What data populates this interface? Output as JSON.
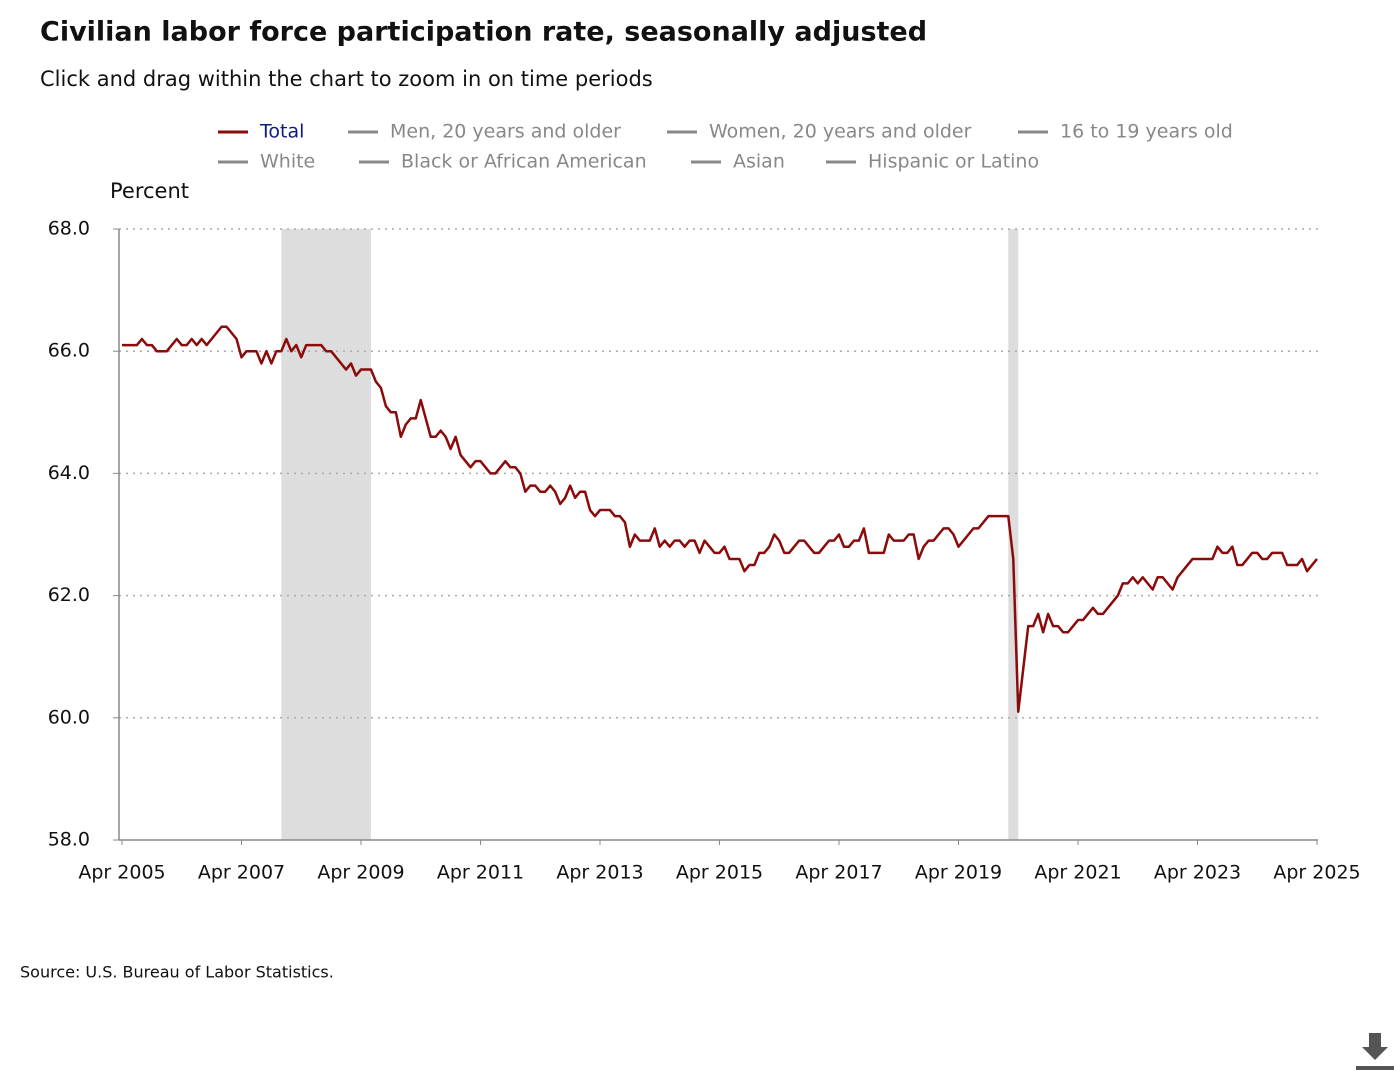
{
  "chart_data": {
    "type": "line",
    "title": "Civilian labor force participation rate, seasonally adjusted",
    "subtitle": "Click and drag within the chart to zoom in on time periods",
    "y_label": "Percent",
    "source": "Source: U.S. Bureau of Labor Statistics.",
    "ylim": [
      58,
      68
    ],
    "yticks": [
      {
        "value": 58,
        "label": "58.0"
      },
      {
        "value": 60,
        "label": "60.0"
      },
      {
        "value": 62,
        "label": "62.0"
      },
      {
        "value": 64,
        "label": "64.0"
      },
      {
        "value": 66,
        "label": "66.0"
      },
      {
        "value": 68,
        "label": "68.0"
      }
    ],
    "xlim": [
      "2005-04",
      "2025-04"
    ],
    "xticks": [
      {
        "value": "2005-04",
        "label": "Apr 2005"
      },
      {
        "value": "2007-04",
        "label": "Apr 2007"
      },
      {
        "value": "2009-04",
        "label": "Apr 2009"
      },
      {
        "value": "2011-04",
        "label": "Apr 2011"
      },
      {
        "value": "2013-04",
        "label": "Apr 2013"
      },
      {
        "value": "2015-04",
        "label": "Apr 2015"
      },
      {
        "value": "2017-04",
        "label": "Apr 2017"
      },
      {
        "value": "2019-04",
        "label": "Apr 2019"
      },
      {
        "value": "2021-04",
        "label": "Apr 2021"
      },
      {
        "value": "2023-04",
        "label": "Apr 2023"
      },
      {
        "value": "2025-04",
        "label": "Apr 2025"
      }
    ],
    "grid": true,
    "recessions": [
      [
        "2007-12",
        "2009-06"
      ],
      [
        "2020-02",
        "2020-04"
      ]
    ],
    "recession_color": "#dddddd",
    "inactive_color": "#888888",
    "legend_items": [
      "Men, 20 years and older",
      "Women, 20 years and older",
      "16 to 19 years old",
      "White",
      "Black or African American",
      "Asian",
      "Hispanic or Latino"
    ],
    "x": [
      "2005-04",
      "2005-05",
      "2005-06",
      "2005-07",
      "2005-08",
      "2005-09",
      "2005-10",
      "2005-11",
      "2005-12",
      "2006-01",
      "2006-02",
      "2006-03",
      "2006-04",
      "2006-05",
      "2006-06",
      "2006-07",
      "2006-08",
      "2006-09",
      "2006-10",
      "2006-11",
      "2006-12",
      "2007-01",
      "2007-02",
      "2007-03",
      "2007-04",
      "2007-05",
      "2007-06",
      "2007-07",
      "2007-08",
      "2007-09",
      "2007-10",
      "2007-11",
      "2007-12",
      "2008-01",
      "2008-02",
      "2008-03",
      "2008-04",
      "2008-05",
      "2008-06",
      "2008-07",
      "2008-08",
      "2008-09",
      "2008-10",
      "2008-11",
      "2008-12",
      "2009-01",
      "2009-02",
      "2009-03",
      "2009-04",
      "2009-05",
      "2009-06",
      "2009-07",
      "2009-08",
      "2009-09",
      "2009-10",
      "2009-11",
      "2009-12",
      "2010-01",
      "2010-02",
      "2010-03",
      "2010-04",
      "2010-05",
      "2010-06",
      "2010-07",
      "2010-08",
      "2010-09",
      "2010-10",
      "2010-11",
      "2010-12",
      "2011-01",
      "2011-02",
      "2011-03",
      "2011-04",
      "2011-05",
      "2011-06",
      "2011-07",
      "2011-08",
      "2011-09",
      "2011-10",
      "2011-11",
      "2011-12",
      "2012-01",
      "2012-02",
      "2012-03",
      "2012-04",
      "2012-05",
      "2012-06",
      "2012-07",
      "2012-08",
      "2012-09",
      "2012-10",
      "2012-11",
      "2012-12",
      "2013-01",
      "2013-02",
      "2013-03",
      "2013-04",
      "2013-05",
      "2013-06",
      "2013-07",
      "2013-08",
      "2013-09",
      "2013-10",
      "2013-11",
      "2013-12",
      "2014-01",
      "2014-02",
      "2014-03",
      "2014-04",
      "2014-05",
      "2014-06",
      "2014-07",
      "2014-08",
      "2014-09",
      "2014-10",
      "2014-11",
      "2014-12",
      "2015-01",
      "2015-02",
      "2015-03",
      "2015-04",
      "2015-05",
      "2015-06",
      "2015-07",
      "2015-08",
      "2015-09",
      "2015-10",
      "2015-11",
      "2015-12",
      "2016-01",
      "2016-02",
      "2016-03",
      "2016-04",
      "2016-05",
      "2016-06",
      "2016-07",
      "2016-08",
      "2016-09",
      "2016-10",
      "2016-11",
      "2016-12",
      "2017-01",
      "2017-02",
      "2017-03",
      "2017-04",
      "2017-05",
      "2017-06",
      "2017-07",
      "2017-08",
      "2017-09",
      "2017-10",
      "2017-11",
      "2017-12",
      "2018-01",
      "2018-02",
      "2018-03",
      "2018-04",
      "2018-05",
      "2018-06",
      "2018-07",
      "2018-08",
      "2018-09",
      "2018-10",
      "2018-11",
      "2018-12",
      "2019-01",
      "2019-02",
      "2019-03",
      "2019-04",
      "2019-05",
      "2019-06",
      "2019-07",
      "2019-08",
      "2019-09",
      "2019-10",
      "2019-11",
      "2019-12",
      "2020-01",
      "2020-02",
      "2020-03",
      "2020-04",
      "2020-05",
      "2020-06",
      "2020-07",
      "2020-08",
      "2020-09",
      "2020-10",
      "2020-11",
      "2020-12",
      "2021-01",
      "2021-02",
      "2021-03",
      "2021-04",
      "2021-05",
      "2021-06",
      "2021-07",
      "2021-08",
      "2021-09",
      "2021-10",
      "2021-11",
      "2021-12",
      "2022-01",
      "2022-02",
      "2022-03",
      "2022-04",
      "2022-05",
      "2022-06",
      "2022-07",
      "2022-08",
      "2022-09",
      "2022-10",
      "2022-11",
      "2022-12",
      "2023-01",
      "2023-02",
      "2023-03",
      "2023-04",
      "2023-05",
      "2023-06",
      "2023-07",
      "2023-08",
      "2023-09",
      "2023-10",
      "2023-11",
      "2023-12",
      "2024-01",
      "2024-02",
      "2024-03",
      "2024-04",
      "2024-05",
      "2024-06",
      "2024-07",
      "2024-08",
      "2024-09",
      "2024-10",
      "2024-11",
      "2024-12",
      "2025-01",
      "2025-02",
      "2025-03",
      "2025-04"
    ],
    "series": [
      {
        "name": "Total",
        "color": "#8b0a0a",
        "label_color": "#0b1f7a",
        "values": [
          66.1,
          66.1,
          66.1,
          66.1,
          66.2,
          66.1,
          66.1,
          66.0,
          66.0,
          66.0,
          66.1,
          66.2,
          66.1,
          66.1,
          66.2,
          66.1,
          66.2,
          66.1,
          66.2,
          66.3,
          66.4,
          66.4,
          66.3,
          66.2,
          65.9,
          66.0,
          66.0,
          66.0,
          65.8,
          66.0,
          65.8,
          66.0,
          66.0,
          66.2,
          66.0,
          66.1,
          65.9,
          66.1,
          66.1,
          66.1,
          66.1,
          66.0,
          66.0,
          65.9,
          65.8,
          65.7,
          65.8,
          65.6,
          65.7,
          65.7,
          65.7,
          65.5,
          65.4,
          65.1,
          65.0,
          65.0,
          64.6,
          64.8,
          64.9,
          64.9,
          65.2,
          64.9,
          64.6,
          64.6,
          64.7,
          64.6,
          64.4,
          64.6,
          64.3,
          64.2,
          64.1,
          64.2,
          64.2,
          64.1,
          64.0,
          64.0,
          64.1,
          64.2,
          64.1,
          64.1,
          64.0,
          63.7,
          63.8,
          63.8,
          63.7,
          63.7,
          63.8,
          63.7,
          63.5,
          63.6,
          63.8,
          63.6,
          63.7,
          63.7,
          63.4,
          63.3,
          63.4,
          63.4,
          63.4,
          63.3,
          63.3,
          63.2,
          62.8,
          63.0,
          62.9,
          62.9,
          62.9,
          63.1,
          62.8,
          62.9,
          62.8,
          62.9,
          62.9,
          62.8,
          62.9,
          62.9,
          62.7,
          62.9,
          62.8,
          62.7,
          62.7,
          62.8,
          62.6,
          62.6,
          62.6,
          62.4,
          62.5,
          62.5,
          62.7,
          62.7,
          62.8,
          63.0,
          62.9,
          62.7,
          62.7,
          62.8,
          62.9,
          62.9,
          62.8,
          62.7,
          62.7,
          62.8,
          62.9,
          62.9,
          63.0,
          62.8,
          62.8,
          62.9,
          62.9,
          63.1,
          62.7,
          62.7,
          62.7,
          62.7,
          63.0,
          62.9,
          62.9,
          62.9,
          63.0,
          63.0,
          62.6,
          62.8,
          62.9,
          62.9,
          63.0,
          63.1,
          63.1,
          63.0,
          62.8,
          62.9,
          63.0,
          63.1,
          63.1,
          63.2,
          63.3,
          63.3,
          63.3,
          63.3,
          63.3,
          62.6,
          60.1,
          60.8,
          61.5,
          61.5,
          61.7,
          61.4,
          61.7,
          61.5,
          61.5,
          61.4,
          61.4,
          61.5,
          61.6,
          61.6,
          61.7,
          61.8,
          61.7,
          61.7,
          61.8,
          61.9,
          62.0,
          62.2,
          62.2,
          62.3,
          62.2,
          62.3,
          62.2,
          62.1,
          62.3,
          62.3,
          62.2,
          62.1,
          62.3,
          62.4,
          62.5,
          62.6,
          62.6,
          62.6,
          62.6,
          62.6,
          62.8,
          62.7,
          62.7,
          62.8,
          62.5,
          62.5,
          62.6,
          62.7,
          62.7,
          62.6,
          62.6,
          62.7,
          62.7,
          62.7,
          62.5,
          62.5,
          62.5,
          62.6,
          62.4,
          62.5,
          62.6
        ]
      }
    ]
  }
}
